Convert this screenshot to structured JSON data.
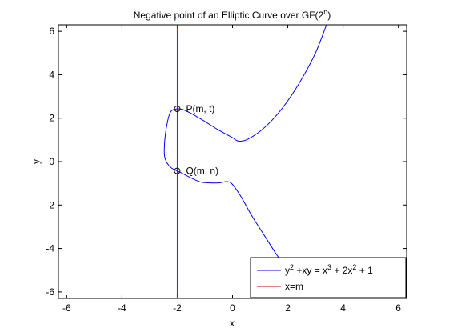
{
  "chart_data": {
    "type": "line",
    "title": "Negative point of an Elliptic Curve over GF(2",
    "title_sup": "n",
    "title_end": ")",
    "xlabel": "x",
    "ylabel": "y",
    "xlim": [
      -6.3,
      6.3
    ],
    "ylim": [
      -6.3,
      6.3
    ],
    "xticks": [
      -6,
      -4,
      -2,
      0,
      2,
      4,
      6
    ],
    "yticks": [
      -6,
      -4,
      -2,
      0,
      2,
      4,
      6
    ],
    "grid": false,
    "legend_position": "bottom-right",
    "series": [
      {
        "legend": {
          "t1": "y",
          "s1": "2",
          "t2": " +xy = x",
          "s2": "3",
          "t3": " + 2x",
          "s3": "2",
          "t4": " + 1"
        },
        "color": "#0000ff",
        "points_upper": [
          [
            -2.47,
            0.5
          ],
          [
            -2.45,
            1.0
          ],
          [
            -2.4,
            1.5
          ],
          [
            -2.3,
            2.1
          ],
          [
            -2.2,
            2.35
          ],
          [
            -2.0,
            2.43
          ],
          [
            -1.8,
            2.4
          ],
          [
            -1.5,
            2.22
          ],
          [
            -1.0,
            1.85
          ],
          [
            -0.5,
            1.45
          ],
          [
            0.0,
            1.1
          ],
          [
            0.2,
            0.95
          ],
          [
            0.5,
            1.0
          ],
          [
            1.0,
            1.4
          ],
          [
            1.5,
            2.0
          ],
          [
            2.0,
            2.8
          ],
          [
            2.5,
            3.8
          ],
          [
            3.0,
            5.0
          ],
          [
            3.4,
            6.3
          ]
        ],
        "points_lower": [
          [
            -2.47,
            0.5
          ],
          [
            -2.45,
            0.2
          ],
          [
            -2.35,
            -0.1
          ],
          [
            -2.2,
            -0.3
          ],
          [
            -2.0,
            -0.43
          ],
          [
            -1.8,
            -0.55
          ],
          [
            -1.5,
            -0.75
          ],
          [
            -1.2,
            -0.92
          ],
          [
            -1.0,
            -0.97
          ],
          [
            -0.5,
            -0.98
          ],
          [
            -0.2,
            -0.92
          ],
          [
            0.0,
            -1.05
          ],
          [
            0.3,
            -1.6
          ],
          [
            0.7,
            -2.5
          ],
          [
            1.0,
            -3.1
          ],
          [
            1.5,
            -4.1
          ],
          [
            1.8,
            -4.7
          ],
          [
            2.2,
            -5.8
          ],
          [
            2.35,
            -6.3
          ]
        ]
      },
      {
        "legend": {
          "t1": "x=m"
        },
        "color": "#cc0000",
        "vertical_x": -2
      }
    ],
    "points": [
      {
        "x": -2,
        "y": 2.43,
        "label": "P(m, t)"
      },
      {
        "x": -2,
        "y": -0.43,
        "label": "Q(m, n)"
      }
    ]
  }
}
